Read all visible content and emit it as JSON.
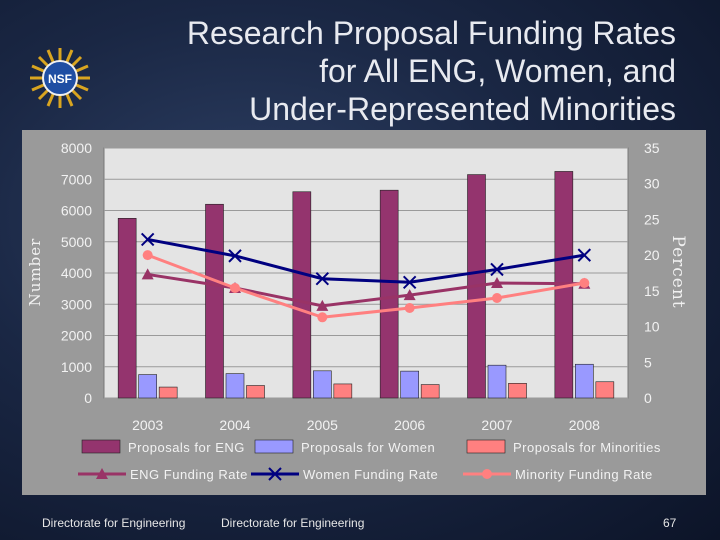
{
  "slide": {
    "title_lines": [
      "Research Proposal Funding Rates",
      "for All ENG, Women, and",
      "Under-Represented Minorities"
    ],
    "logo_text": "NSF",
    "footer_left": "Directorate for Engineering",
    "footer_center": "Directorate for Engineering",
    "page_number": "67"
  },
  "colors": {
    "proposals_eng": "#94346e",
    "proposals_women": "#9999ff",
    "proposals_minorities": "#ff8080",
    "eng_rate": "#993366",
    "women_rate": "#000080",
    "minority_rate": "#ff8080",
    "plot_bg": "#e4e4e4",
    "grid": "#9a9a9a"
  },
  "chart_data": {
    "type": "bar",
    "title": "",
    "categories": [
      "2003",
      "2004",
      "2005",
      "2006",
      "2007",
      "2008"
    ],
    "ylabel": "Number",
    "y2label": "Percent",
    "ylim": [
      0,
      8000
    ],
    "y2lim": [
      0,
      35
    ],
    "yticks": [
      0,
      1000,
      2000,
      3000,
      4000,
      5000,
      6000,
      7000,
      8000
    ],
    "y2ticks": [
      0,
      5,
      10,
      15,
      20,
      25,
      30,
      35
    ],
    "grid": true,
    "legend_position": "bottom",
    "series": [
      {
        "name": "Proposals for ENG",
        "type": "bar",
        "axis": "left",
        "color_key": "proposals_eng",
        "values": [
          5750,
          6200,
          6600,
          6650,
          7150,
          7250
        ]
      },
      {
        "name": "Proposals for Women",
        "type": "bar",
        "axis": "left",
        "color_key": "proposals_women",
        "values": [
          750,
          780,
          870,
          860,
          1050,
          1080
        ]
      },
      {
        "name": "Proposals for Minorities",
        "type": "bar",
        "axis": "left",
        "color_key": "proposals_minorities",
        "values": [
          350,
          400,
          450,
          430,
          470,
          520
        ]
      },
      {
        "name": "ENG Funding Rate",
        "type": "line",
        "axis": "right",
        "marker": "triangle",
        "color_key": "eng_rate",
        "values": [
          17.3,
          15.4,
          12.9,
          14.4,
          16.1,
          16.0
        ]
      },
      {
        "name": "Women Funding Rate",
        "type": "line",
        "axis": "right",
        "marker": "x",
        "color_key": "women_rate",
        "values": [
          22.2,
          19.9,
          16.7,
          16.2,
          18.0,
          20.0
        ]
      },
      {
        "name": "Minority Funding Rate",
        "type": "line",
        "axis": "right",
        "marker": "circle",
        "color_key": "minority_rate",
        "values": [
          20.0,
          15.4,
          11.3,
          12.6,
          14.0,
          16.1
        ]
      }
    ]
  }
}
